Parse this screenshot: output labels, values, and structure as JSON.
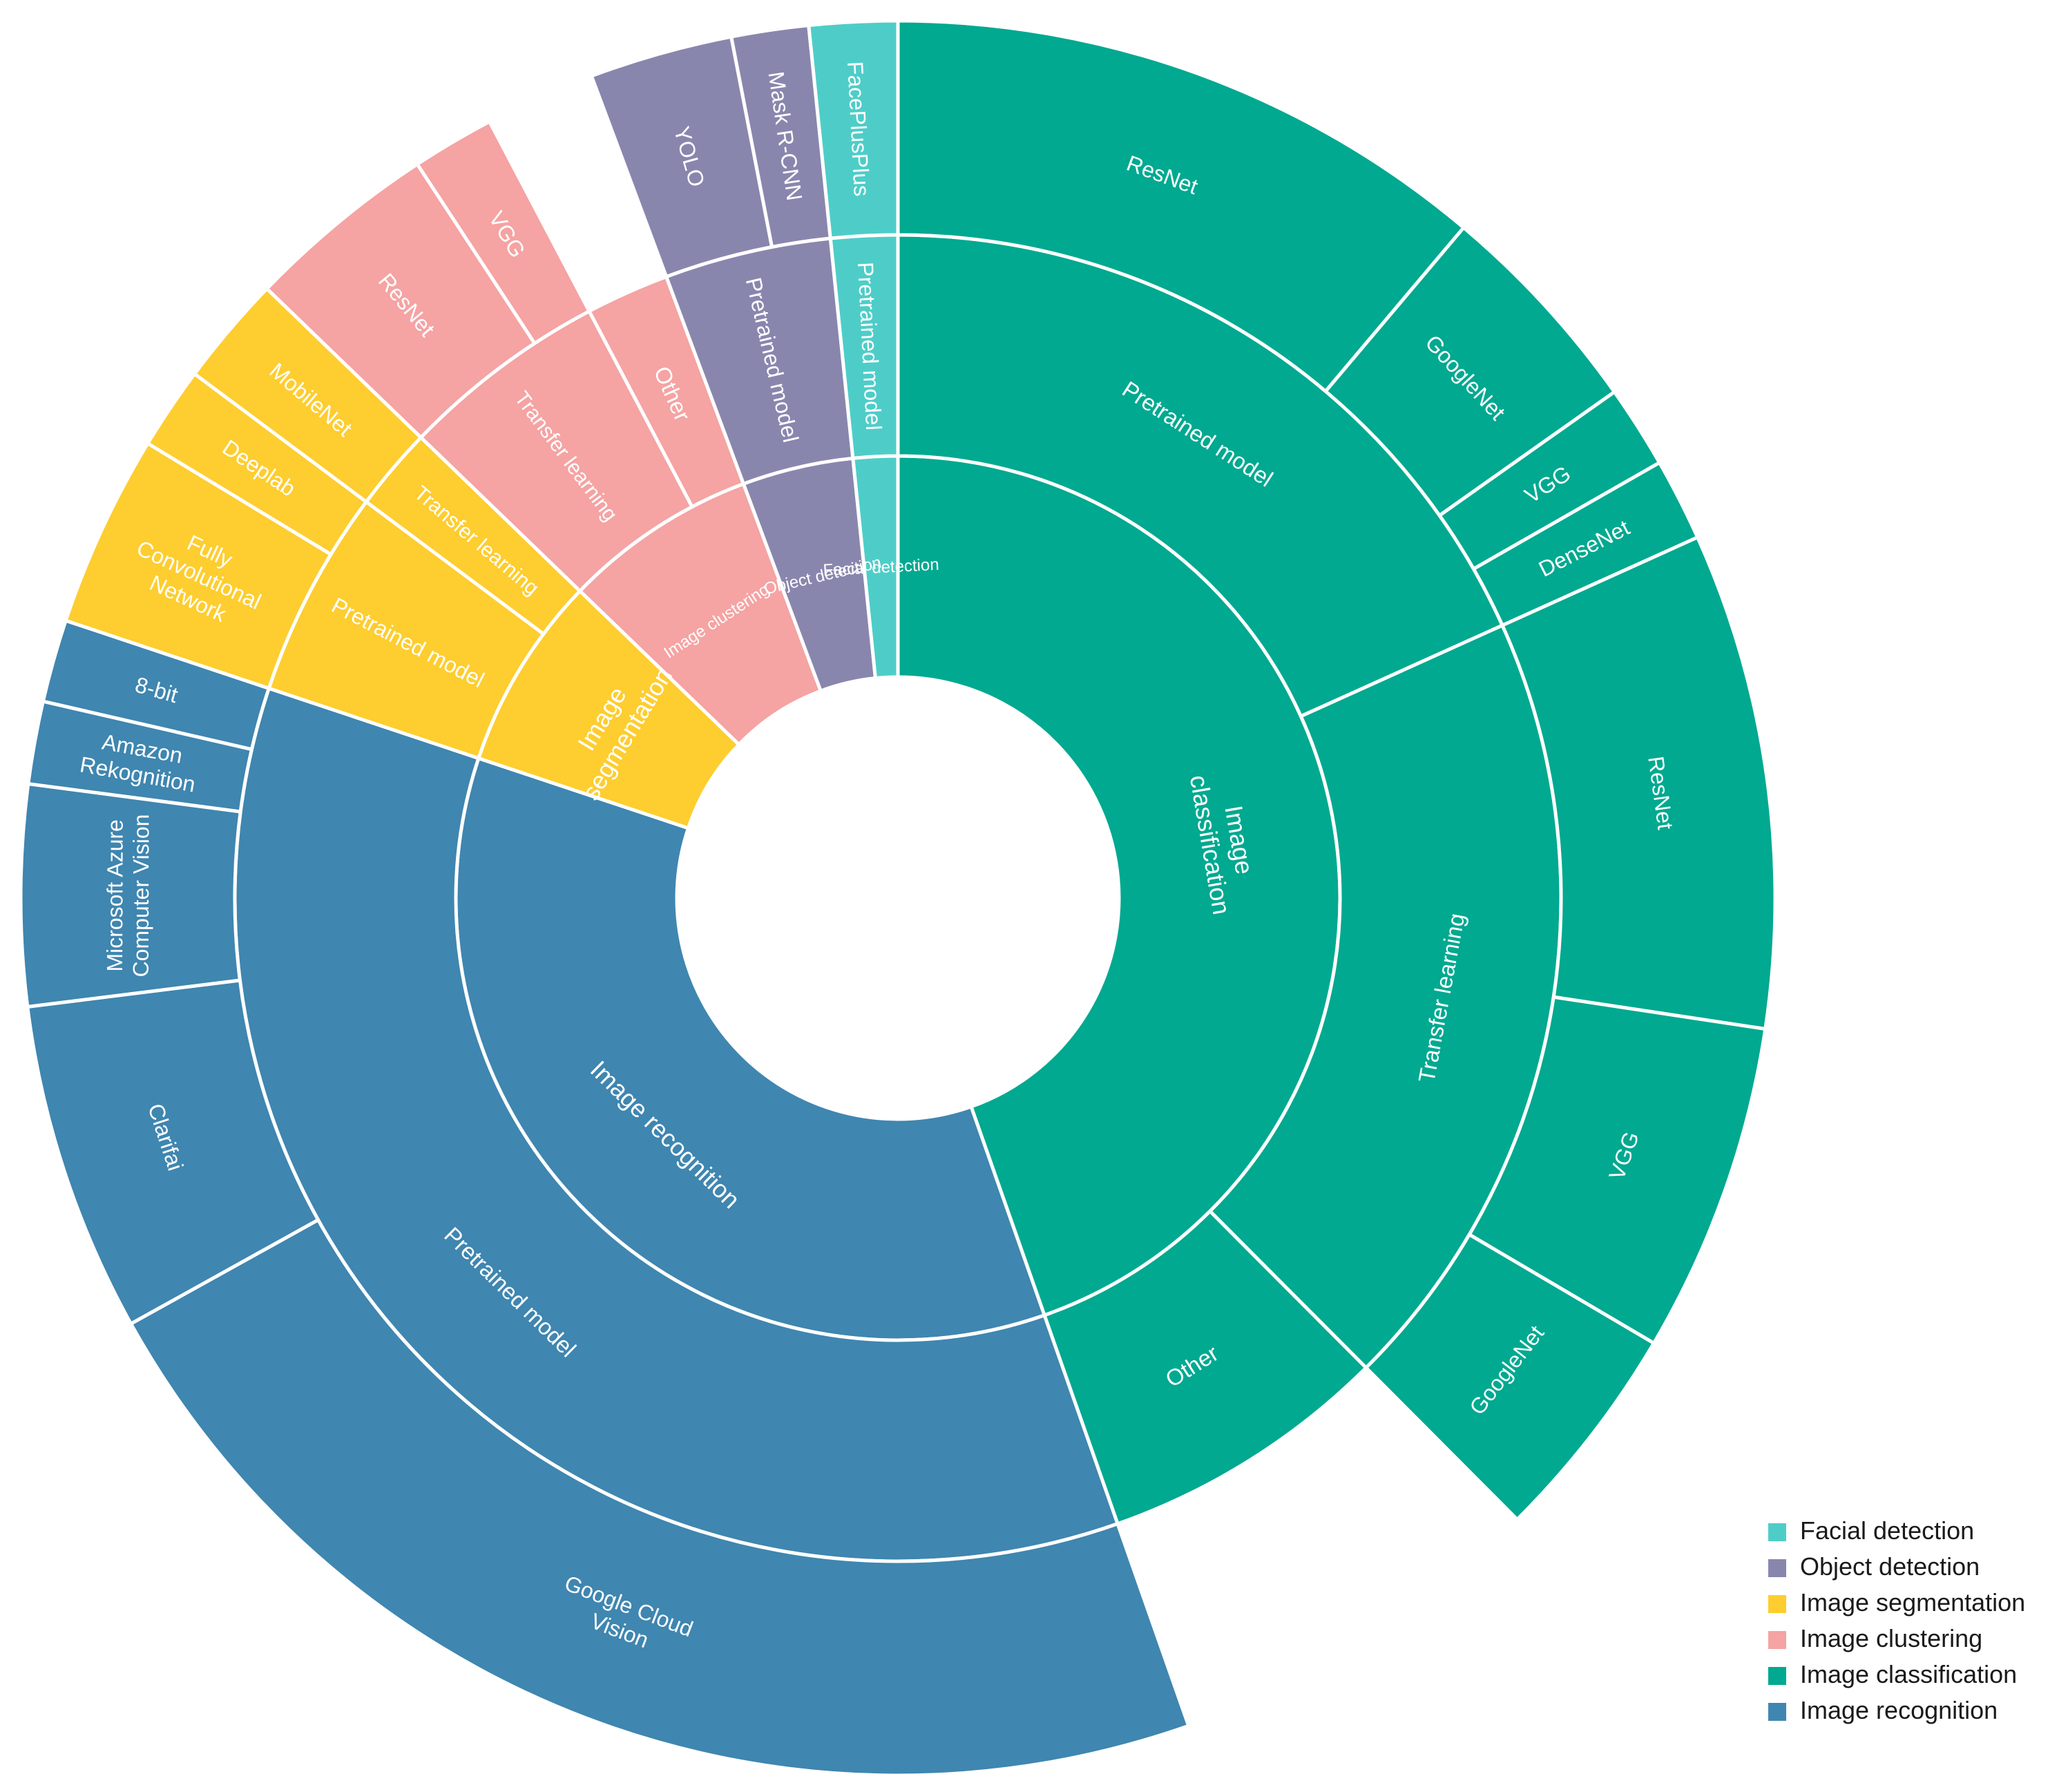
{
  "chart_data": {
    "type": "sunburst",
    "title": "",
    "legend": {
      "placement": "bottom-right",
      "items": [
        {
          "label": "Facial detection",
          "color": "#4ecdc8"
        },
        {
          "label": "Object detection",
          "color": "#8986ae"
        },
        {
          "label": "Image segmentation",
          "color": "#fecd2f"
        },
        {
          "label": "Image clustering",
          "color": "#f5a3a3"
        },
        {
          "label": "Image classification",
          "color": "#00a990"
        },
        {
          "label": "Image recognition",
          "color": "#3f86b0"
        }
      ]
    },
    "tree": [
      {
        "name": "Image classification",
        "label": [
          "Image",
          "classification"
        ],
        "color": "#00a990",
        "value": 44,
        "children": [
          {
            "name": "Pretrained model",
            "value": 18,
            "children": [
              {
                "name": "ResNet",
                "value": 11
              },
              {
                "name": "GoogleNet",
                "value": 4
              },
              {
                "name": "VGG",
                "value": 1.5
              },
              {
                "name": "DenseNet",
                "value": 1.5
              }
            ]
          },
          {
            "name": "Transfer learning",
            "value": 19,
            "children": [
              {
                "name": "ResNet",
                "value": 9
              },
              {
                "name": "VGG",
                "value": 6
              },
              {
                "name": "GoogleNet",
                "value": 4
              }
            ]
          },
          {
            "name": "Other",
            "value": 7,
            "children": []
          }
        ]
      },
      {
        "name": "Image recognition",
        "label": [
          "Image recognition"
        ],
        "color": "#3f86b0",
        "value": 35,
        "children": [
          {
            "name": "Pretrained model",
            "value": 35,
            "children": [
              {
                "name": "Google Cloud Vision",
                "label": [
                  "Google Cloud",
                  "Vision"
                ],
                "value": 22
              },
              {
                "name": "Clarifai",
                "value": 6
              },
              {
                "name": "Microsoft Azure Computer Vision",
                "label": [
                  "Microsoft Azure",
                  "Computer Vision"
                ],
                "value": 4
              },
              {
                "name": "Amazon Rekognition",
                "label": [
                  "Amazon",
                  "Rekognition"
                ],
                "value": 1.5
              },
              {
                "name": "8-bit",
                "value": 1.5
              }
            ]
          }
        ]
      },
      {
        "name": "Image segmentation",
        "label": [
          "Image",
          "segmentation"
        ],
        "color": "#fecd2f",
        "value": 7,
        "children": [
          {
            "name": "Pretrained model",
            "value": 5,
            "children": [
              {
                "name": "Fully Convolutional Network",
                "label": [
                  "Fully",
                  "Convolutional",
                  "Network"
                ],
                "value": 3.5
              },
              {
                "name": "Deeplab",
                "value": 1.5
              }
            ]
          },
          {
            "name": "Transfer learning",
            "value": 2,
            "children": [
              {
                "name": "MobileNet",
                "value": 2
              }
            ]
          }
        ]
      },
      {
        "name": "Image clustering",
        "label": [
          "Image clustering"
        ],
        "color": "#f5a3a3",
        "value": 7,
        "children": [
          {
            "name": "Transfer learning",
            "value": 5,
            "children": [
              {
                "name": "ResNet",
                "value": 3.5
              },
              {
                "name": "VGG",
                "value": 1.5
              }
            ]
          },
          {
            "name": "Other",
            "value": 2,
            "children": []
          }
        ]
      },
      {
        "name": "Object detection",
        "label": [
          "Object detection"
        ],
        "color": "#8986ae",
        "value": 4,
        "children": [
          {
            "name": "Pretrained model",
            "value": 4,
            "children": [
              {
                "name": "YOLO",
                "value": 2.6
              },
              {
                "name": "Mask R-CNN",
                "value": 1.4
              }
            ]
          }
        ]
      },
      {
        "name": "Facial detection",
        "label": [
          "Facial detection"
        ],
        "color": "#4ecdc8",
        "value": 1.6,
        "children": [
          {
            "name": "Pretrained model",
            "value": 1.6,
            "children": [
              {
                "name": "FacePlusPlus",
                "value": 1.6
              }
            ]
          }
        ]
      }
    ]
  }
}
